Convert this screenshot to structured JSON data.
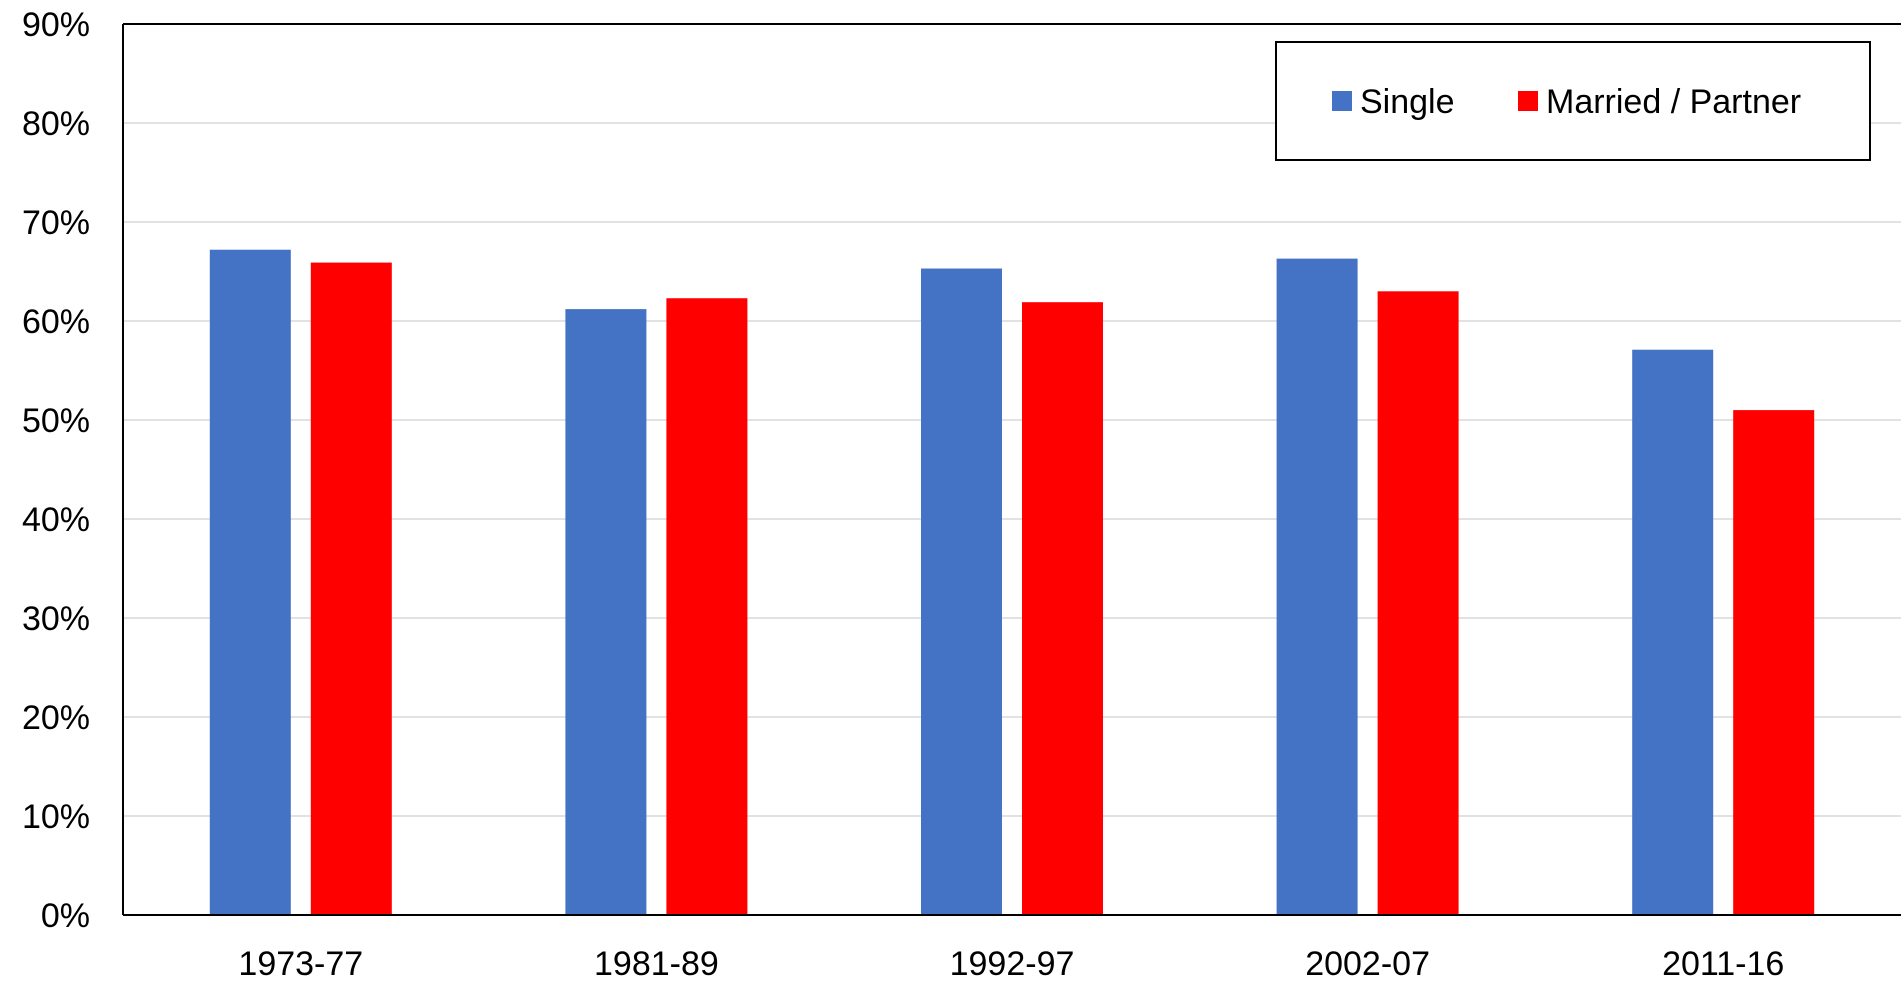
{
  "chart_data": {
    "type": "bar",
    "categories": [
      "1973-77",
      "1981-89",
      "1992-97",
      "2002-07",
      "2011-16"
    ],
    "series": [
      {
        "name": "Single",
        "color": "#4472C4",
        "values": [
          67.2,
          61.2,
          65.3,
          66.3,
          57.1
        ]
      },
      {
        "name": "Married / Partner",
        "color": "#FF0000",
        "values": [
          65.9,
          62.3,
          61.9,
          63.0,
          51.0
        ]
      }
    ],
    "y_ticks": [
      "0%",
      "10%",
      "20%",
      "30%",
      "40%",
      "50%",
      "60%",
      "70%",
      "80%",
      "90%"
    ],
    "ylim": [
      0,
      90
    ],
    "y_unit": "%",
    "grid": true,
    "legend_position": "top-right",
    "gridline_color": "#D9D9D9"
  }
}
